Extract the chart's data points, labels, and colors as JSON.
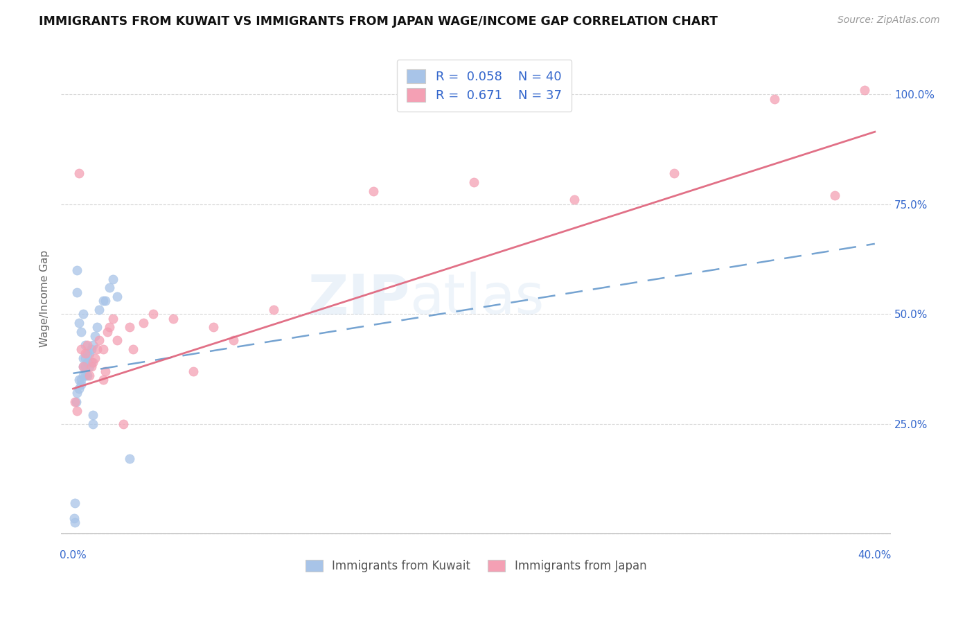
{
  "title": "IMMIGRANTS FROM KUWAIT VS IMMIGRANTS FROM JAPAN WAGE/INCOME GAP CORRELATION CHART",
  "source": "Source: ZipAtlas.com",
  "ylabel": "Wage/Income Gap",
  "watermark": "ZIPatlas",
  "kuwait_R": 0.058,
  "kuwait_N": 40,
  "japan_R": 0.671,
  "japan_N": 37,
  "kuwait_color": "#a8c4e8",
  "japan_color": "#f4a0b4",
  "kuwait_line_color": "#6699cc",
  "japan_line_color": "#e06880",
  "legend_text_color": "#3366cc",
  "background_color": "#ffffff",
  "kuwait_x": [
    0.0005,
    0.001,
    0.001,
    0.0015,
    0.002,
    0.002,
    0.002,
    0.003,
    0.003,
    0.003,
    0.004,
    0.004,
    0.004,
    0.005,
    0.005,
    0.005,
    0.005,
    0.006,
    0.006,
    0.006,
    0.006,
    0.007,
    0.007,
    0.007,
    0.008,
    0.008,
    0.009,
    0.009,
    0.01,
    0.01,
    0.01,
    0.011,
    0.012,
    0.013,
    0.015,
    0.016,
    0.018,
    0.02,
    0.022,
    0.028
  ],
  "kuwait_y": [
    0.035,
    0.025,
    0.07,
    0.3,
    0.32,
    0.55,
    0.6,
    0.33,
    0.35,
    0.48,
    0.34,
    0.35,
    0.46,
    0.36,
    0.38,
    0.4,
    0.5,
    0.36,
    0.38,
    0.4,
    0.43,
    0.36,
    0.39,
    0.41,
    0.38,
    0.41,
    0.39,
    0.42,
    0.25,
    0.27,
    0.43,
    0.45,
    0.47,
    0.51,
    0.53,
    0.53,
    0.56,
    0.58,
    0.54,
    0.17
  ],
  "japan_x": [
    0.001,
    0.002,
    0.003,
    0.004,
    0.005,
    0.006,
    0.007,
    0.008,
    0.009,
    0.01,
    0.011,
    0.012,
    0.013,
    0.015,
    0.016,
    0.017,
    0.018,
    0.02,
    0.022,
    0.025,
    0.028,
    0.03,
    0.035,
    0.04,
    0.05,
    0.06,
    0.07,
    0.08,
    0.1,
    0.015,
    0.15,
    0.2,
    0.25,
    0.3,
    0.35,
    0.38,
    0.395
  ],
  "japan_y": [
    0.3,
    0.28,
    0.82,
    0.42,
    0.38,
    0.41,
    0.43,
    0.36,
    0.38,
    0.39,
    0.4,
    0.42,
    0.44,
    0.35,
    0.37,
    0.46,
    0.47,
    0.49,
    0.44,
    0.25,
    0.47,
    0.42,
    0.48,
    0.5,
    0.49,
    0.37,
    0.47,
    0.44,
    0.51,
    0.42,
    0.78,
    0.8,
    0.76,
    0.82,
    0.99,
    0.77,
    1.01
  ],
  "kuwait_line_x0": 0.0,
  "kuwait_line_y0": 0.365,
  "kuwait_line_x1": 0.4,
  "kuwait_line_y1": 0.66,
  "japan_line_x0": 0.0,
  "japan_line_y0": 0.33,
  "japan_line_x1": 0.4,
  "japan_line_y1": 0.915,
  "xmin": 0.0,
  "xmax": 0.4,
  "ymin": 0.0,
  "ymax": 1.08
}
